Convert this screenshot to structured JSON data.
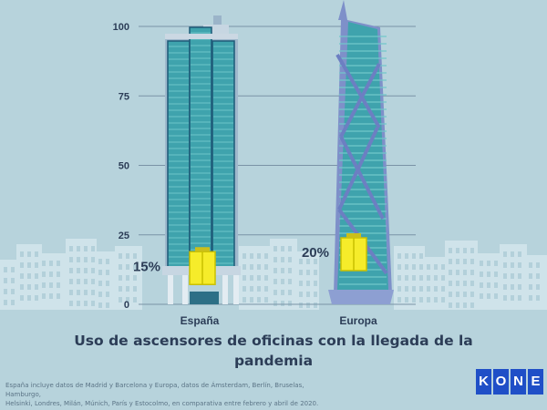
{
  "chart_data": {
    "type": "bar",
    "categories": [
      "España",
      "Europa"
    ],
    "values": [
      15,
      20
    ],
    "value_labels": [
      "15%",
      "20%"
    ],
    "ylim": [
      0,
      100
    ],
    "yticks": [
      0,
      25,
      50,
      75,
      100
    ],
    "title": "Uso de ascensores de oficinas con la llegada de la pandemia",
    "grid": true,
    "colors": {
      "background": "#b7d3dc",
      "tower_glass": "#3fa3ad",
      "tower_frame": "#6c7fc2",
      "elevator": "#f6ec2a",
      "text": "#2c3d57"
    }
  },
  "title_lines": [
    "Uso de ascensores de oficinas con la llegada de la",
    "pandemia"
  ],
  "footnote_lines": [
    "España incluye datos de Madrid y Barcelona y Europa, datos de Ámsterdam, Berlín, Bruselas, Hamburgo,",
    "Helsinki, Londres, Milán, Múnich, París y Estocolmo, en comparativa entre febrero y abril de 2020."
  ],
  "logo": {
    "letters": [
      "K",
      "O",
      "N",
      "E"
    ],
    "color": "#1f4fc7"
  }
}
